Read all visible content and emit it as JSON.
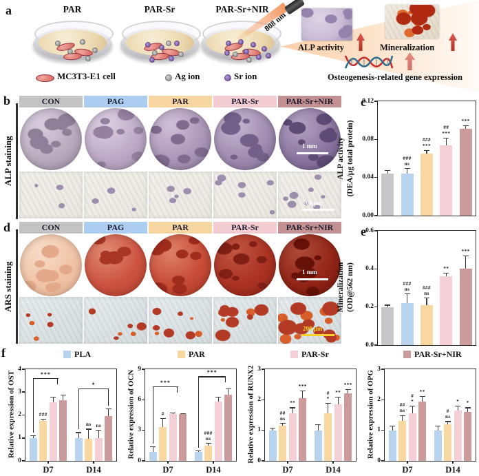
{
  "palette": {
    "gray": "#c7c7c9",
    "blue": "#b7d3ee",
    "orange": "#f8d8a0",
    "pink": "#f5cfd6",
    "mauve": "#cb9b9b",
    "header_colors": [
      "#c3c3c3",
      "#adcdf0",
      "#f7d6a2",
      "#f3ccd2",
      "#c39191"
    ],
    "axis": "#2b2b2b",
    "arrow_red": "#c0392b",
    "scale_yellow": "#f5d327",
    "scale_white": "#ffffff"
  },
  "groups": [
    "CON",
    "PAG",
    "PAR",
    "PAR-Sr",
    "PAR-Sr+NIR"
  ],
  "panel_a": {
    "label": "a",
    "dishes": [
      {
        "label": "PAR"
      },
      {
        "label": "PAR-Sr"
      },
      {
        "label": "PAR-Sr+NIR"
      }
    ],
    "laser_label": "808 nm",
    "legend": [
      {
        "icon": "cell-icon",
        "label": "MC3T3-E1 cell"
      },
      {
        "icon": "ag-ion-icon",
        "label": "Ag ion"
      },
      {
        "icon": "sr-ion-icon",
        "label": "Sr ion"
      }
    ],
    "outcomes": {
      "alp": "ALP activity",
      "mineralization": "Mineralization",
      "gene": "Osteogenesis-related gene expression"
    }
  },
  "panel_b": {
    "label": "b",
    "row_label": "ALP staining",
    "scale_circle": "1 mm",
    "scale_square": "200 μm"
  },
  "panel_c": {
    "label": "c"
  },
  "panel_d": {
    "label": "d",
    "row_label": "ARS staining",
    "scale_circle": "1 mm",
    "scale_square": "200 μm"
  },
  "panel_e": {
    "label": "e"
  },
  "panel_f": {
    "label": "f",
    "legend": [
      "PLA",
      "PAR",
      "PAR-Sr",
      "PAR-Sr+NIR"
    ],
    "categories": [
      "D7",
      "D14"
    ]
  },
  "stain_colors": {
    "alp_circles": [
      {
        "base": "#b9abbe",
        "light": "#d8cede",
        "dark": "#8f7f98"
      },
      {
        "base": "#bcaac6",
        "light": "#ddd0e2",
        "dark": "#94809f"
      },
      {
        "base": "#ab97b8",
        "light": "#cfc0d6",
        "dark": "#7f6b8e"
      },
      {
        "base": "#a08cb0",
        "light": "#c6b7d0",
        "dark": "#73608a"
      },
      {
        "base": "#8b76a0",
        "light": "#b3a2c2",
        "dark": "#5d4a75"
      }
    ],
    "alp_square": {
      "base": "#eae7e0",
      "light": "#f2f0ea",
      "spot": "#9c8fae",
      "density": [
        3,
        3,
        4,
        6,
        8
      ]
    },
    "ars_circles": [
      {
        "base": "#f0c3a6",
        "light": "#f7dcc8",
        "dark": "#e3a98a"
      },
      {
        "base": "#cc5340",
        "light": "#e08a74",
        "dark": "#a93526"
      },
      {
        "base": "#c74c38",
        "light": "#dd8168",
        "dark": "#a02c1d"
      },
      {
        "base": "#ab3223",
        "light": "#c05642",
        "dark": "#801f13"
      },
      {
        "base": "#922517",
        "light": "#ad4a38",
        "dark": "#661107"
      }
    ],
    "ars_square": {
      "base": "#d3dcde",
      "light": "#e6ecee",
      "spot": "#b33a24",
      "spot2": "#d95f2a",
      "density": [
        3,
        4,
        5,
        7,
        9
      ],
      "size": [
        6,
        7,
        8,
        11,
        14
      ]
    }
  },
  "chart_data": [
    {
      "id": "alp_activity",
      "panel": "c",
      "type": "bar",
      "categories": [
        "CON",
        "PAG",
        "PAR",
        "PAR-Sr",
        "PAR-Sr+NIR"
      ],
      "values": [
        0.044,
        0.044,
        0.065,
        0.074,
        0.091
      ],
      "errors": [
        0.004,
        0.006,
        0.004,
        0.008,
        0.004
      ],
      "annotations": [
        "",
        "###\nns",
        "###\n***",
        "##\n***",
        "***"
      ],
      "bar_colors": [
        "gray",
        "blue",
        "orange",
        "pink",
        "mauve"
      ],
      "ylabel_lines": [
        "ALP activity",
        "(DEA/μg total protein)"
      ],
      "ylim": [
        0,
        0.12
      ],
      "yticks": [
        0,
        0.04,
        0.08,
        0.12
      ],
      "ytick_labels": [
        "0.00",
        "0.04",
        "0.08",
        "0.12"
      ],
      "xlabel": "",
      "grid": false,
      "legend_position": "none",
      "brackets": []
    },
    {
      "id": "mineralization",
      "panel": "e",
      "type": "bar",
      "categories": [
        "CON",
        "PAG",
        "PAR",
        "PAR-Sr",
        "PAR-Sr+NIR"
      ],
      "values": [
        0.2,
        0.22,
        0.21,
        0.36,
        0.4
      ],
      "errors": [
        0.012,
        0.05,
        0.04,
        0.02,
        0.07
      ],
      "annotations": [
        "",
        "###\nns",
        "###\nns",
        "**",
        "***"
      ],
      "bar_colors": [
        "gray",
        "blue",
        "orange",
        "pink",
        "mauve"
      ],
      "ylabel_lines": [
        "Mineralization",
        "(OD@562 nm)"
      ],
      "ylim": [
        0,
        0.6
      ],
      "yticks": [
        0,
        0.2,
        0.4,
        0.6
      ],
      "ytick_labels": [
        "0.0",
        "0.2",
        "0.4",
        "0.6"
      ],
      "xlabel": "",
      "grid": false,
      "legend_position": "none",
      "brackets": []
    },
    {
      "id": "ost",
      "panel": "f",
      "type": "bar",
      "ylabel": "Relative expression of  OST",
      "categories": [
        "D7",
        "D14"
      ],
      "series": [
        {
          "name": "PLA",
          "values": [
            1.0,
            1.0
          ],
          "errors": [
            0.12,
            0.25
          ],
          "annotations": [
            "",
            ""
          ]
        },
        {
          "name": "PAR",
          "values": [
            1.75,
            0.95
          ],
          "errors": [
            0.08,
            0.45
          ],
          "annotations": [
            "###",
            "ns"
          ]
        },
        {
          "name": "PAR-Sr",
          "values": [
            2.55,
            1.0
          ],
          "errors": [
            0.25,
            0.35
          ],
          "annotations": [
            "",
            "ns"
          ]
        },
        {
          "name": "PAR-Sr+NIR",
          "values": [
            2.65,
            1.95
          ],
          "errors": [
            0.25,
            0.35
          ],
          "annotations": [
            "",
            ""
          ]
        }
      ],
      "bar_colors": [
        "blue",
        "orange",
        "pink",
        "mauve"
      ],
      "ylim": [
        0,
        4
      ],
      "yticks": [
        0,
        1,
        2,
        3,
        4
      ],
      "ytick_labels": [
        "0",
        "1",
        "2",
        "3",
        "4"
      ],
      "brackets": [
        {
          "from": 0,
          "to": 2.5,
          "y": 3.6,
          "label": "***"
        },
        {
          "from": 4,
          "to": 7,
          "y": 3.15,
          "label": "*"
        }
      ]
    },
    {
      "id": "ocn",
      "panel": "f",
      "type": "bar",
      "ylabel": "Relative expression of OCN",
      "categories": [
        "D7",
        "D14"
      ],
      "series": [
        {
          "name": "PLA",
          "values": [
            0.9,
            0.9
          ],
          "errors": [
            0.5,
            0.1
          ],
          "annotations": [
            "",
            ""
          ]
        },
        {
          "name": "PAR",
          "values": [
            3.3,
            1.5
          ],
          "errors": [
            0.9,
            0.25
          ],
          "annotations": [
            "#",
            "###\nns"
          ]
        },
        {
          "name": "PAR-Sr",
          "values": [
            4.6,
            5.8
          ],
          "errors": [
            0.15,
            0.5
          ],
          "annotations": [
            "",
            ""
          ]
        },
        {
          "name": "PAR-Sr+NIR",
          "values": [
            4.6,
            6.5
          ],
          "errors": [
            0.1,
            0.6
          ],
          "annotations": [
            "",
            ""
          ]
        }
      ],
      "bar_colors": [
        "blue",
        "orange",
        "pink",
        "mauve"
      ],
      "ylim": [
        0,
        9
      ],
      "yticks": [
        0,
        3,
        6,
        9
      ],
      "ytick_labels": [
        "0",
        "3",
        "6",
        "9"
      ],
      "brackets": [
        {
          "from": 0,
          "to": 2.5,
          "y": 7.3,
          "label": "***"
        },
        {
          "from": 4,
          "to": 6.75,
          "y": 8.3,
          "label": "***"
        }
      ]
    },
    {
      "id": "runx2",
      "panel": "f",
      "type": "bar",
      "ylabel": "Relative expression of RUNX2",
      "categories": [
        "D7",
        "D14"
      ],
      "series": [
        {
          "name": "PLA",
          "values": [
            1.0,
            1.0
          ],
          "errors": [
            0.08,
            0.2
          ],
          "annotations": [
            "",
            ""
          ]
        },
        {
          "name": "PAR",
          "values": [
            1.15,
            1.55
          ],
          "errors": [
            0.1,
            0.35
          ],
          "annotations": [
            "##\nns",
            "#\n*"
          ]
        },
        {
          "name": "PAR-Sr",
          "values": [
            1.55,
            1.85
          ],
          "errors": [
            0.2,
            0.25
          ],
          "annotations": [
            "**",
            "**"
          ]
        },
        {
          "name": "PAR-Sr+NIR",
          "values": [
            2.05,
            2.2
          ],
          "errors": [
            0.25,
            0.15
          ],
          "annotations": [
            "***",
            "***"
          ]
        }
      ],
      "bar_colors": [
        "blue",
        "orange",
        "pink",
        "mauve"
      ],
      "ylim": [
        0,
        3
      ],
      "yticks": [
        0,
        1,
        2,
        3
      ],
      "ytick_labels": [
        "0",
        "1",
        "2",
        "3"
      ],
      "brackets": []
    },
    {
      "id": "opg",
      "panel": "f",
      "type": "bar",
      "ylabel": "Relative expression of OPG",
      "categories": [
        "D7",
        "D14"
      ],
      "series": [
        {
          "name": "PLA",
          "values": [
            1.0,
            1.0
          ],
          "errors": [
            0.15,
            0.15
          ],
          "annotations": [
            "",
            ""
          ]
        },
        {
          "name": "PAR",
          "values": [
            1.3,
            1.2
          ],
          "errors": [
            0.2,
            0.1
          ],
          "annotations": [
            "##\nns",
            "#\nns"
          ]
        },
        {
          "name": "PAR-Sr",
          "values": [
            1.55,
            1.65
          ],
          "errors": [
            0.25,
            0.15
          ],
          "annotations": [
            "#\n*",
            "*"
          ]
        },
        {
          "name": "PAR-Sr+NIR",
          "values": [
            1.93,
            1.6
          ],
          "errors": [
            0.2,
            0.15
          ],
          "annotations": [
            "**",
            "*"
          ]
        }
      ],
      "bar_colors": [
        "blue",
        "orange",
        "pink",
        "mauve"
      ],
      "ylim": [
        0,
        3
      ],
      "yticks": [
        0,
        1,
        2,
        3
      ],
      "ytick_labels": [
        "0",
        "1",
        "2",
        "3"
      ],
      "brackets": []
    }
  ]
}
